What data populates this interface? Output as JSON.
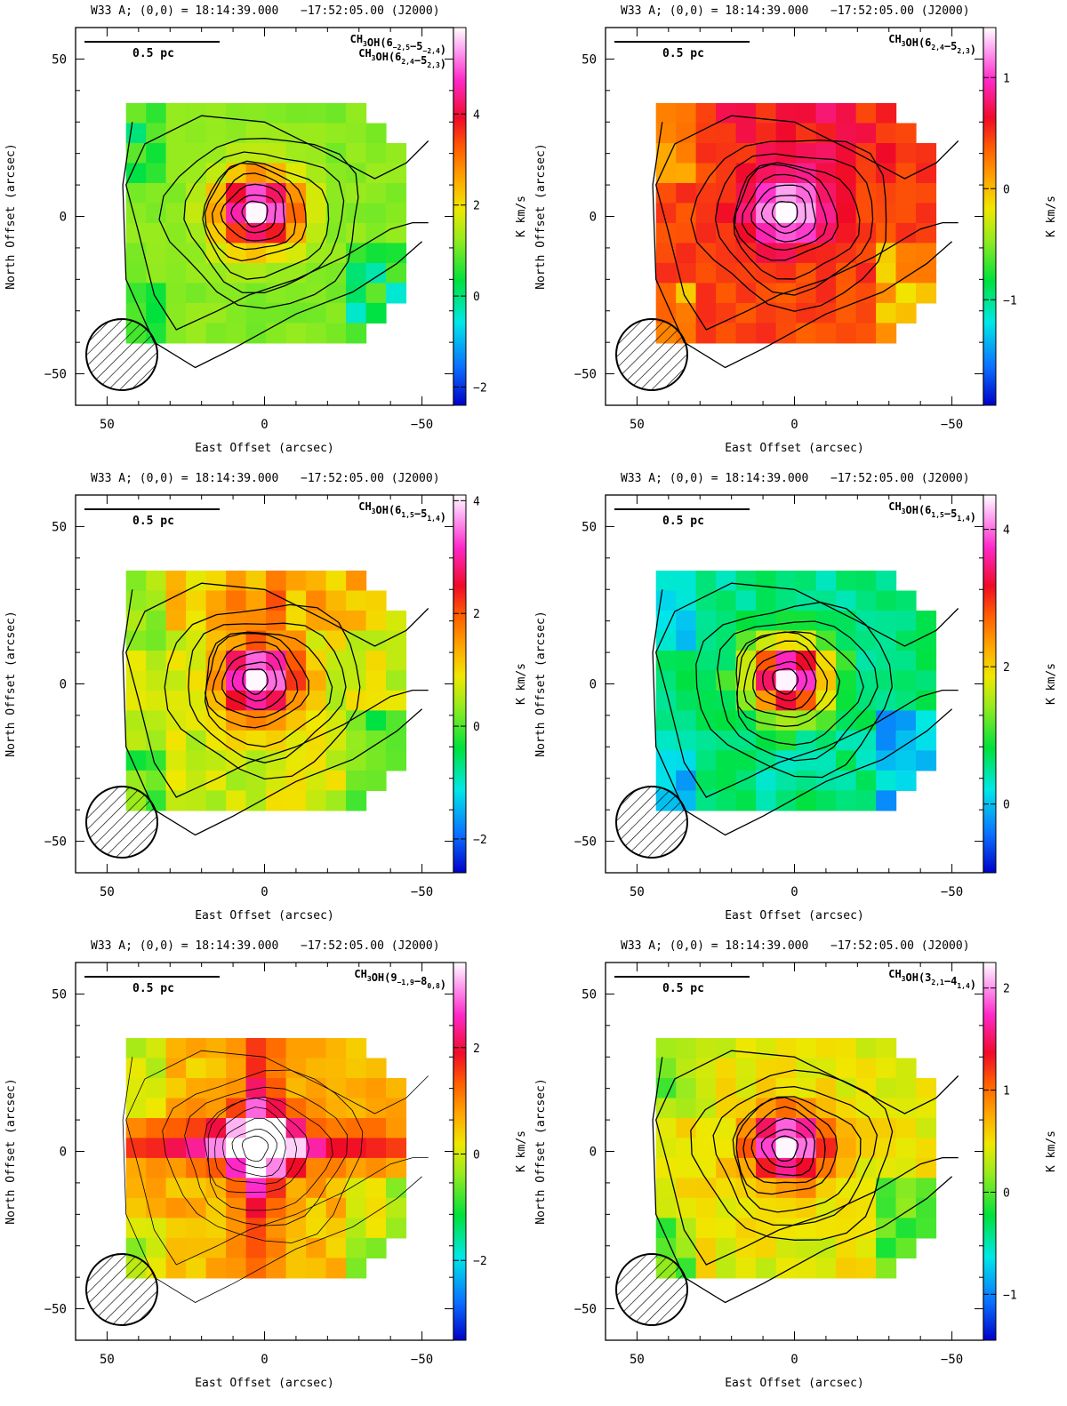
{
  "figure": {
    "header_source": "W33 A; (0,0) = 18:14:39.000",
    "header_dec": "−17:52:05.00 (J2000)",
    "scalebar_label": "0.5 pc",
    "x_axis_label": "East Offset (arcsec)",
    "y_axis_label": "North Offset (arcsec)",
    "colorbar_unit": "K km/s"
  },
  "chart_data": [
    {
      "type": "heatmap",
      "title": "CH3OH(6-2,5-5-2,4) CH3OH(62,4-52,3)",
      "mol_lines": [
        [
          {
            "t": "CH"
          },
          {
            "t": "3",
            "sub": true
          },
          {
            "t": "OH(6"
          },
          {
            "t": "−2,5",
            "sub": true
          },
          {
            "t": "−5"
          },
          {
            "t": "−2,4",
            "sub": true
          },
          {
            "t": ")"
          }
        ],
        [
          {
            "t": "CH"
          },
          {
            "t": "3",
            "sub": true
          },
          {
            "t": "OH(6"
          },
          {
            "t": "2,4",
            "sub": true
          },
          {
            "t": "−5"
          },
          {
            "t": "2,3",
            "sub": true
          },
          {
            "t": ")"
          }
        ]
      ],
      "xlim": [
        60,
        -60
      ],
      "ylim": [
        -60,
        60
      ],
      "xticks": [
        "50",
        "0",
        "−50"
      ],
      "yticks": [
        "50",
        "0",
        "−50"
      ],
      "colorbar_range": [
        -2.4,
        5.9
      ],
      "colorbar_ticks": [
        "4",
        "2",
        "0",
        "−2"
      ],
      "colorbar_tick_values": [
        4,
        2,
        0,
        -2
      ],
      "map": "ring",
      "peak": 5.9,
      "background": [
        1.0,
        1.3
      ],
      "contours": "thick"
    },
    {
      "type": "heatmap",
      "title": "CH3OH(62,4-52,3)",
      "mol_lines": [
        [
          {
            "t": "CH"
          },
          {
            "t": "3",
            "sub": true
          },
          {
            "t": "OH(6"
          },
          {
            "t": "2,4",
            "sub": true
          },
          {
            "t": "−5"
          },
          {
            "t": "2,3",
            "sub": true
          },
          {
            "t": ")"
          }
        ]
      ],
      "xlim": [
        60,
        -60
      ],
      "ylim": [
        -60,
        60
      ],
      "xticks": [
        "50",
        "0",
        "−50"
      ],
      "yticks": [
        "50",
        "0",
        "−50"
      ],
      "colorbar_range": [
        -1.95,
        1.45
      ],
      "colorbar_ticks": [
        "1",
        "0",
        "−1"
      ],
      "colorbar_tick_values": [
        1,
        0,
        -1
      ],
      "map": "blob_top",
      "peak": 1.45,
      "background": [
        0.35,
        0.55
      ],
      "contours": "thick"
    },
    {
      "type": "heatmap",
      "title": "CH3OH(61,5-51,4)",
      "mol_lines": [
        [
          {
            "t": "CH"
          },
          {
            "t": "3",
            "sub": true
          },
          {
            "t": "OH(6"
          },
          {
            "t": "1,5",
            "sub": true
          },
          {
            "t": "−5"
          },
          {
            "t": "1,4",
            "sub": true
          },
          {
            "t": ")"
          }
        ]
      ],
      "xlim": [
        60,
        -60
      ],
      "ylim": [
        -60,
        60
      ],
      "xticks": [
        "50",
        "0",
        "−50"
      ],
      "yticks": [
        "50",
        "0",
        "−50"
      ],
      "colorbar_range": [
        -2.6,
        4.1
      ],
      "colorbar_ticks": [
        "4",
        "2",
        "0",
        "−2"
      ],
      "colorbar_tick_values": [
        4,
        2,
        0,
        -2
      ],
      "map": "blob_top",
      "peak": 4.1,
      "background": [
        0.4,
        1.0
      ],
      "contours": "thick"
    },
    {
      "type": "heatmap",
      "title": "CH3OH(61,5-51,4)",
      "mol_lines": [
        [
          {
            "t": "CH"
          },
          {
            "t": "3",
            "sub": true
          },
          {
            "t": "OH(6"
          },
          {
            "t": "1,5",
            "sub": true
          },
          {
            "t": "−5"
          },
          {
            "t": "1,4",
            "sub": true
          },
          {
            "t": ")"
          }
        ]
      ],
      "xlim": [
        60,
        -60
      ],
      "ylim": [
        -60,
        60
      ],
      "xticks": [
        "50",
        "0",
        "−50"
      ],
      "yticks": [
        "50",
        "0",
        "−50"
      ],
      "colorbar_range": [
        -1.0,
        4.5
      ],
      "colorbar_ticks": [
        "4",
        "2",
        "0"
      ],
      "colorbar_tick_values": [
        4,
        2,
        0
      ],
      "map": "ring",
      "peak": 4.5,
      "background": [
        0.3,
        0.8
      ],
      "contours": "thick"
    },
    {
      "type": "heatmap",
      "title": "CH3OH(9-1,9-80,8)",
      "mol_lines": [
        [
          {
            "t": "CH"
          },
          {
            "t": "3",
            "sub": true
          },
          {
            "t": "OH(9"
          },
          {
            "t": "−1,9",
            "sub": true
          },
          {
            "t": "−8"
          },
          {
            "t": "0,8",
            "sub": true
          },
          {
            "t": ")"
          }
        ]
      ],
      "xlim": [
        60,
        -60
      ],
      "ylim": [
        -60,
        60
      ],
      "xticks": [
        "50",
        "0",
        "−50"
      ],
      "yticks": [
        "50",
        "0",
        "−50"
      ],
      "colorbar_range": [
        -3.5,
        3.6
      ],
      "colorbar_ticks": [
        "2",
        "0",
        "−2"
      ],
      "colorbar_tick_values": [
        2,
        0,
        -2
      ],
      "map": "cross",
      "peak": 3.6,
      "background": [
        0.3,
        0.9
      ],
      "contours": "thin"
    },
    {
      "type": "heatmap",
      "title": "CH3OH(32,1-41,4)",
      "mol_lines": [
        [
          {
            "t": "CH"
          },
          {
            "t": "3",
            "sub": true
          },
          {
            "t": "OH(3"
          },
          {
            "t": "2,1",
            "sub": true
          },
          {
            "t": "−4"
          },
          {
            "t": "1,4",
            "sub": true
          },
          {
            "t": ")"
          }
        ]
      ],
      "xlim": [
        60,
        -60
      ],
      "ylim": [
        -60,
        60
      ],
      "xticks": [
        "50",
        "0",
        "−50"
      ],
      "yticks": [
        "50",
        "0",
        "−50"
      ],
      "colorbar_range": [
        -1.45,
        2.25
      ],
      "colorbar_ticks": [
        "2",
        "1",
        "0",
        "−1"
      ],
      "colorbar_tick_values": [
        2,
        1,
        0,
        -1
      ],
      "map": "ring",
      "peak": 2.25,
      "background": [
        0.3,
        0.6
      ],
      "contours": "thick"
    }
  ]
}
